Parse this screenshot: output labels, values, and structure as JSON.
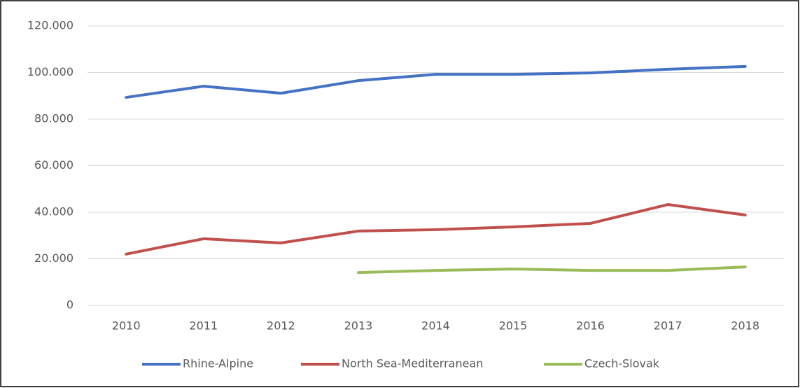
{
  "chart_data": {
    "type": "line",
    "categories": [
      "2010",
      "2011",
      "2012",
      "2013",
      "2014",
      "2015",
      "2016",
      "2017",
      "2018"
    ],
    "series": [
      {
        "name": "Rhine-Alpine",
        "color": "#4472c4",
        "values": [
          89300,
          94100,
          91100,
          96500,
          99200,
          99200,
          99800,
          101400,
          102600
        ]
      },
      {
        "name": "North Sea-Mediterranean",
        "color": "#c0504d",
        "values": [
          22000,
          28600,
          26800,
          31900,
          32500,
          33700,
          35200,
          43300,
          38800
        ]
      },
      {
        "name": "Czech-Slovak",
        "color": "#9bbb59",
        "values": [
          null,
          null,
          null,
          14100,
          15000,
          15600,
          15000,
          15000,
          16500
        ]
      }
    ],
    "ylim": [
      0,
      120000
    ],
    "yticks": [
      0,
      {
        "value": 20000,
        "label": "20.000"
      },
      {
        "value": 40000,
        "label": "40.000"
      },
      {
        "value": 60000,
        "label": "60.000"
      },
      {
        "value": 80000,
        "label": "80.000"
      },
      {
        "value": 100000,
        "label": "100.000"
      },
      {
        "value": 120000,
        "label": "120.000"
      }
    ],
    "grid": true,
    "legend": "bottom"
  }
}
